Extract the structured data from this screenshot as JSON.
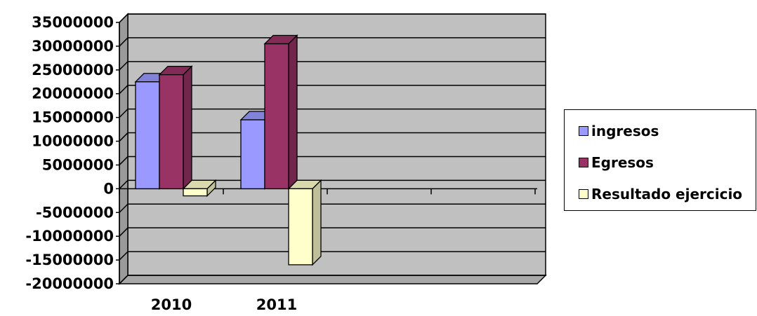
{
  "chart_data": {
    "type": "bar",
    "three_d": true,
    "categories": [
      "2010",
      "2011"
    ],
    "series": [
      {
        "name": "ingresos",
        "color": "#9999FF",
        "values": [
          22500000,
          14500000
        ]
      },
      {
        "name": "Egresos",
        "color": "#993366",
        "values": [
          24000000,
          30500000
        ]
      },
      {
        "name": "Resultado ejercicio",
        "color": "#FFFFCC",
        "values": [
          -1500000,
          -16000000
        ]
      }
    ],
    "ylim": [
      -20000000,
      35000000
    ],
    "yticks": [
      "35000000",
      "30000000",
      "25000000",
      "20000000",
      "15000000",
      "10000000",
      "5000000",
      "0",
      "-5000000",
      "-10000000",
      "-15000000",
      "-20000000"
    ],
    "grid": true,
    "legend_position": "right",
    "plot_background": "#C0C0C0",
    "title": "",
    "xlabel": "",
    "ylabel": ""
  }
}
